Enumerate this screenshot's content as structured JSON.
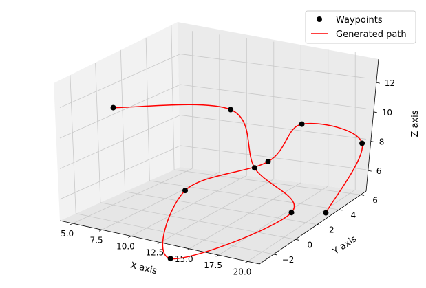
{
  "chart_data": {
    "type": "line3d",
    "title": "",
    "xlabel": "X axis",
    "ylabel": "Y axis",
    "zlabel": "Z axis",
    "xlim": [
      3.9,
      21.0
    ],
    "ylim": [
      -3.3,
      6.5
    ],
    "zlim": [
      4.6,
      13.6
    ],
    "xticks": [
      "5.0",
      "7.5",
      "10.0",
      "12.5",
      "15.0",
      "17.5",
      "20.0"
    ],
    "yticks": [
      "−2",
      "0",
      "2",
      "4",
      "6"
    ],
    "zticks": [
      "6",
      "8",
      "10",
      "12"
    ],
    "grid": true,
    "legend_position": "top-right",
    "legend": {
      "waypoints": "Waypoints",
      "path": "Generated path"
    },
    "colors": {
      "waypoints": "#000000",
      "path": "#ff0000",
      "pane_left": "#f2f2f2",
      "pane_back": "#ebebeb",
      "pane_floor": "#e6e6e6",
      "grid": "#c8c8c8"
    },
    "series": [
      {
        "name": "Waypoints",
        "marker": "circle",
        "points": [
          [
            5,
            0,
            11
          ],
          [
            8,
            3,
            5
          ],
          [
            12,
            -2,
            3
          ],
          [
            15,
            5,
            4
          ],
          [
            15,
            2,
            8
          ],
          [
            14,
            1,
            12
          ],
          [
            18,
            3,
            11
          ],
          [
            20,
            6,
            9
          ],
          [
            19,
            4,
            5
          ],
          [
            13,
            5,
            7
          ]
        ]
      },
      {
        "name": "Generated path",
        "line": true,
        "visits": [
          0,
          5,
          4,
          3,
          2,
          1,
          9,
          6,
          7,
          8
        ]
      }
    ]
  }
}
